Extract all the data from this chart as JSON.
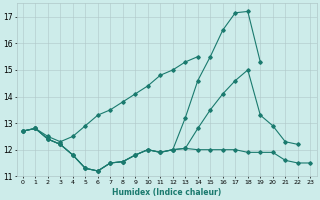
{
  "xlabel": "Humidex (Indice chaleur)",
  "x": [
    0,
    1,
    2,
    3,
    4,
    5,
    6,
    7,
    8,
    9,
    10,
    11,
    12,
    13,
    14,
    15,
    16,
    17,
    18,
    19,
    20,
    21,
    22,
    23
  ],
  "line_bottom": [
    12.7,
    12.8,
    12.4,
    12.2,
    11.8,
    11.3,
    11.2,
    11.5,
    11.55,
    11.8,
    12.0,
    11.9,
    12.0,
    12.05,
    12.0,
    12.0,
    12.0,
    12.0,
    11.9,
    11.9,
    11.9,
    11.6,
    11.5,
    11.5
  ],
  "line_spike": [
    12.7,
    12.8,
    12.4,
    12.2,
    11.8,
    11.3,
    11.2,
    11.5,
    11.55,
    11.8,
    12.0,
    11.9,
    12.0,
    13.2,
    14.6,
    15.5,
    16.5,
    17.15,
    17.2,
    15.3,
    null,
    null,
    null,
    null
  ],
  "line_mid": [
    12.7,
    12.8,
    12.4,
    12.2,
    11.8,
    11.3,
    11.2,
    11.5,
    11.55,
    11.8,
    12.0,
    11.9,
    12.0,
    12.05,
    12.8,
    13.5,
    14.1,
    14.6,
    15.0,
    13.3,
    12.9,
    12.3,
    12.2,
    null
  ],
  "line_rising": [
    12.7,
    12.8,
    12.5,
    12.3,
    12.5,
    12.9,
    13.3,
    13.5,
    13.8,
    14.1,
    14.4,
    14.8,
    15.0,
    15.3,
    15.5,
    null,
    null,
    null,
    null,
    null,
    null,
    null,
    null,
    null
  ],
  "ylim": [
    11.0,
    17.5
  ],
  "yticks": [
    11,
    12,
    13,
    14,
    15,
    16,
    17
  ],
  "xticks": [
    0,
    1,
    2,
    3,
    4,
    5,
    6,
    7,
    8,
    9,
    10,
    11,
    12,
    13,
    14,
    15,
    16,
    17,
    18,
    19,
    20,
    21,
    22,
    23
  ],
  "bg_color": "#cdecea",
  "line_color": "#1a7a6e",
  "grid_color": "#b0c8c8"
}
